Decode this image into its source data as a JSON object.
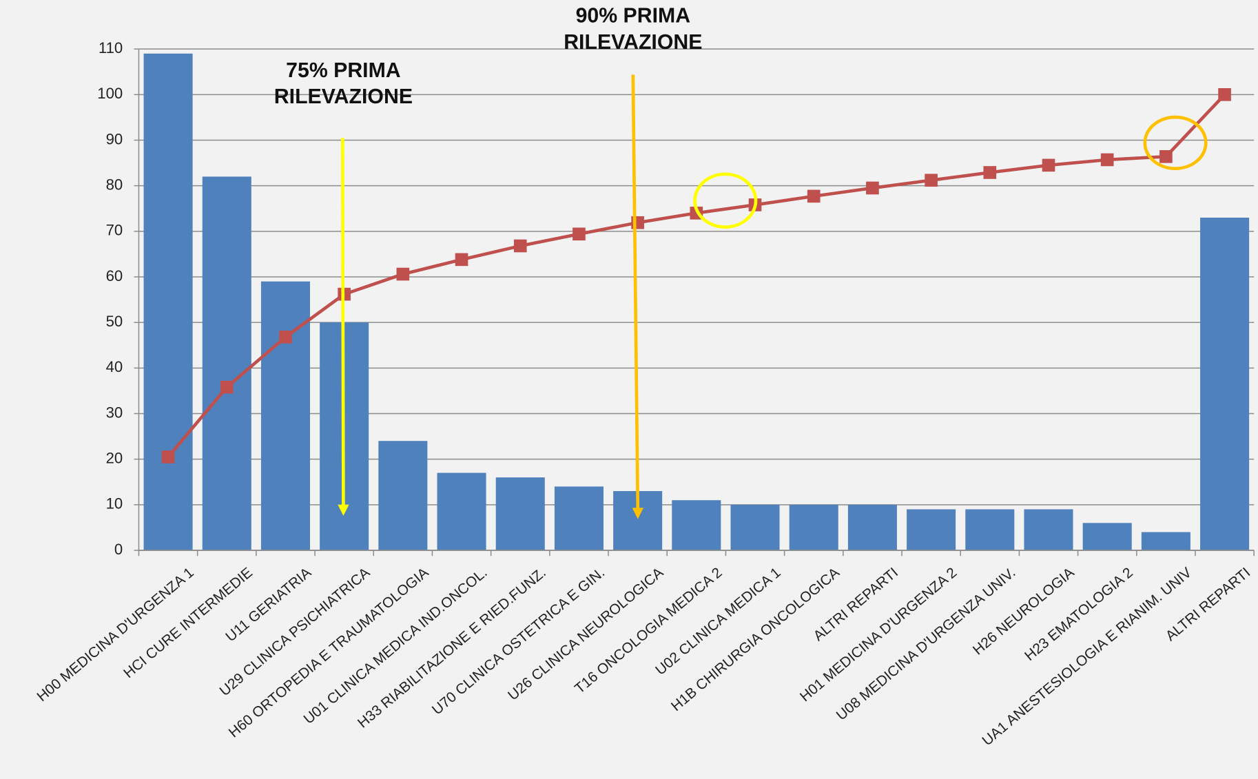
{
  "chart_data": {
    "type": "bar",
    "categories": [
      "H00 MEDICINA D'URGENZA 1",
      "HCI CURE INTERMEDIE",
      "U11 GERIATRIA",
      "U29 CLINICA PSICHIATRICA",
      "H60 ORTOPEDIA E TRAUMATOLOGIA",
      "U01 CLINICA MEDICA IND.ONCOL.",
      "H33 RIABILITAZIONE E RIED.FUNZ.",
      "U70 CLINICA OSTETRICA E GIN.",
      "U26 CLINICA NEUROLOGICA",
      "T16 ONCOLOGIA MEDICA 2",
      "U02 CLINICA MEDICA 1",
      "H1B CHIRURGIA ONCOLOGICA",
      "ALTRI REPARTI",
      "H01 MEDICINA D'URGENZA 2",
      "U08 MEDICINA D'URGENZA UNIV.",
      "H26 NEUROLOGIA",
      "H23 EMATOLOGIA 2",
      "UA1 ANESTESIOLOGIA E RIANIM. UNIV",
      "ALTRI REPARTI"
    ],
    "series": [
      {
        "type": "bar",
        "color": "#4f81bd",
        "values": [
          109,
          82,
          59,
          50,
          24,
          17,
          16,
          14,
          13,
          11,
          10,
          10,
          10,
          9,
          9,
          9,
          6,
          4,
          73
        ]
      },
      {
        "type": "line",
        "color": "#c0504d",
        "values": [
          20.5,
          35.8,
          46.8,
          56.2,
          60.6,
          63.8,
          66.8,
          69.4,
          71.9,
          74,
          75.8,
          77.7,
          79.5,
          81.2,
          82.9,
          84.5,
          85.7,
          86.4,
          100
        ]
      }
    ],
    "ylim": [
      0,
      110
    ],
    "yticks": [
      0,
      10,
      20,
      30,
      40,
      50,
      60,
      70,
      80,
      90,
      100,
      110
    ],
    "grid": true,
    "annotations": [
      {
        "lines": [
          "75% PRIMA",
          "RILEVAZIONE"
        ]
      },
      {
        "lines": [
          "90% PRIMA",
          "RILEVAZIONE"
        ]
      }
    ]
  }
}
